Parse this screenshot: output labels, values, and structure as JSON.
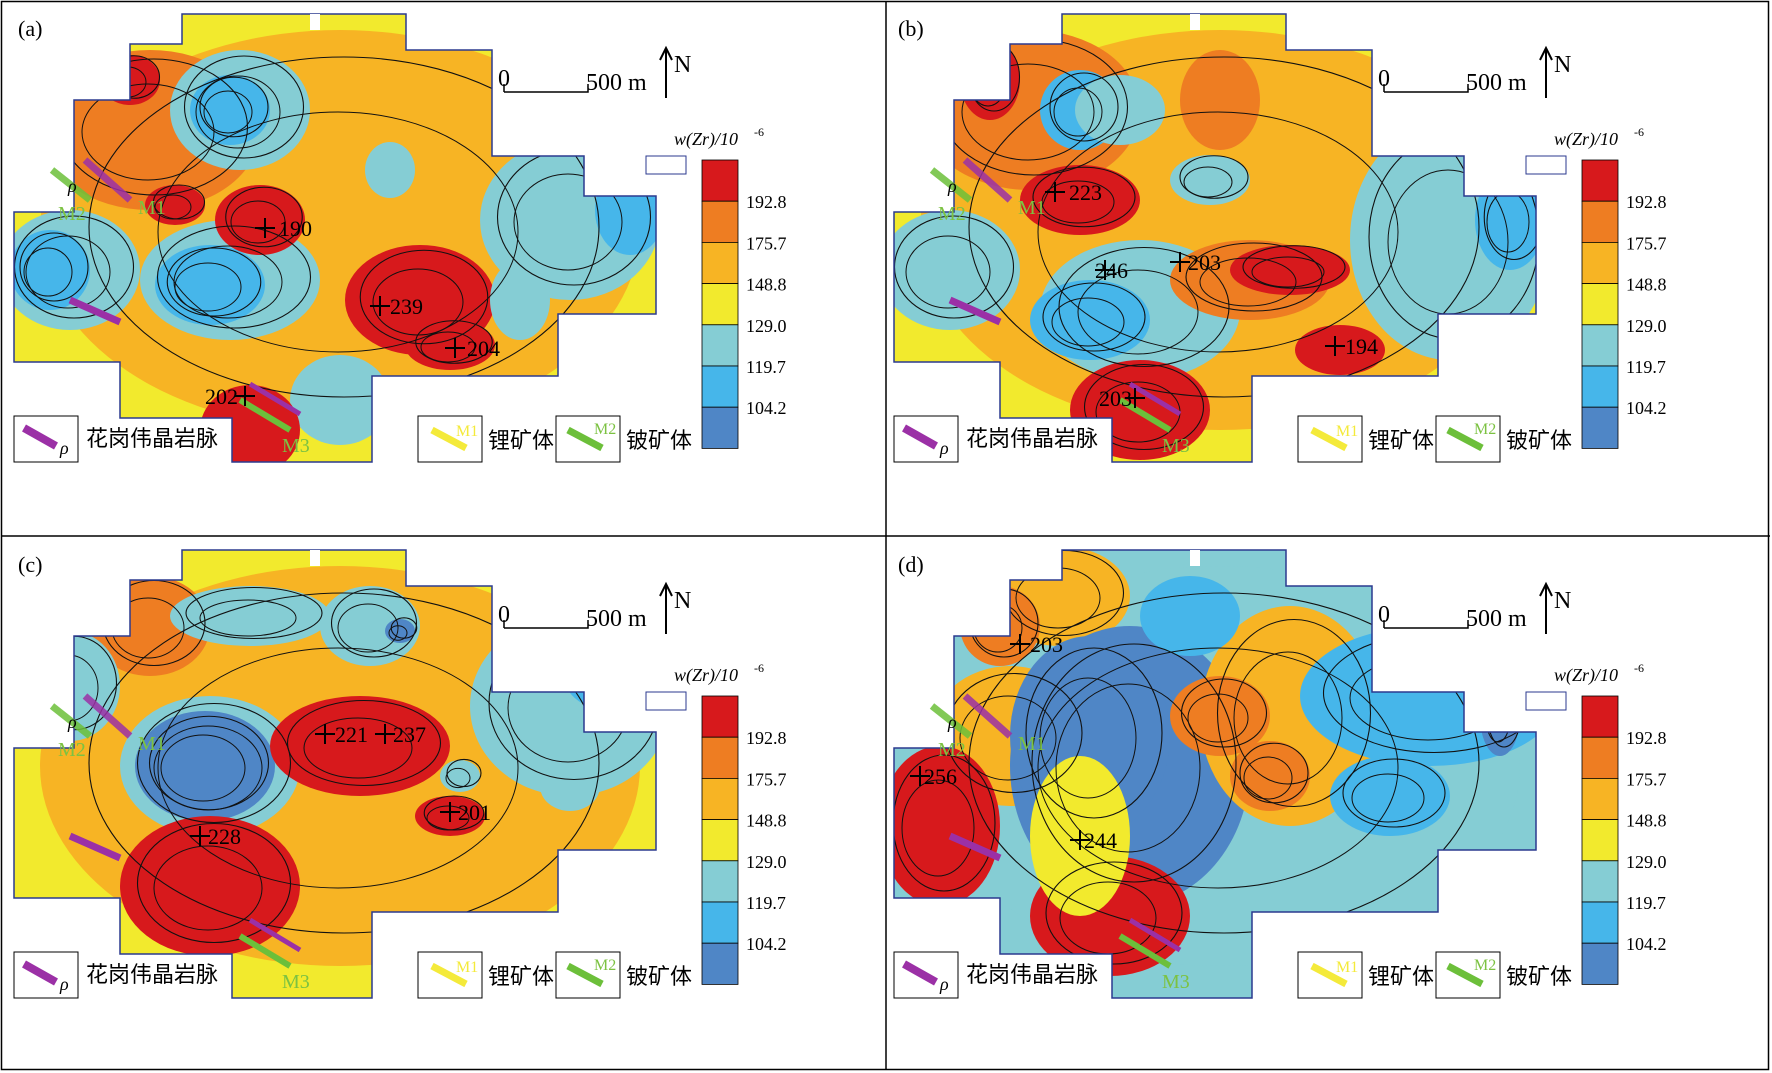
{
  "colors": {
    "red": "#d7191c",
    "dark_orange": "#ee7d22",
    "orange": "#f7b424",
    "yellow": "#f2ea2d",
    "light_blue": "#85cdd4",
    "sky_blue": "#46b6ea",
    "blue": "#4f86c6",
    "dyke": "#9b30a6",
    "li_ore": "#f4ea3a",
    "be_ore": "#6cbf3a",
    "ore_label": "#7cc242",
    "frame": "#2b3a8f"
  },
  "shared": {
    "north_label": "N",
    "scale_zero": "0",
    "scale_dist": "500 m",
    "legend_title_main": "w(Zr)/10",
    "legend_title_exp": "-6",
    "legend_values": [
      "192.8",
      "175.7",
      "148.8",
      "129.0",
      "119.7",
      "104.2"
    ],
    "legend_swatch_colors": [
      "red",
      "dark_orange",
      "orange",
      "yellow",
      "light_blue",
      "sky_blue",
      "blue"
    ],
    "rho": "ρ",
    "dyke_label": "花岗伟晶岩脉",
    "li_box": "M1",
    "li_label": "锂矿体",
    "be_box": "M2",
    "be_label": "铍矿体",
    "ore_labels": [
      "M1",
      "M2",
      "M3"
    ],
    "map_icons": [
      "north-arrow-icon",
      "scale-bar-icon",
      "pegmatite-dyke-icon",
      "lithium-orebody-icon",
      "beryllium-orebody-icon"
    ]
  },
  "panels": [
    {
      "label": "(a)",
      "peaks": [
        "190",
        "239",
        "204",
        "202"
      ]
    },
    {
      "label": "(b)",
      "peaks": [
        "223",
        "246",
        "203",
        "194",
        "203"
      ]
    },
    {
      "label": "(c)",
      "peaks": [
        "221",
        "237",
        "201",
        "228"
      ]
    },
    {
      "label": "(d)",
      "peaks": [
        "203",
        "256",
        "244"
      ]
    }
  ]
}
